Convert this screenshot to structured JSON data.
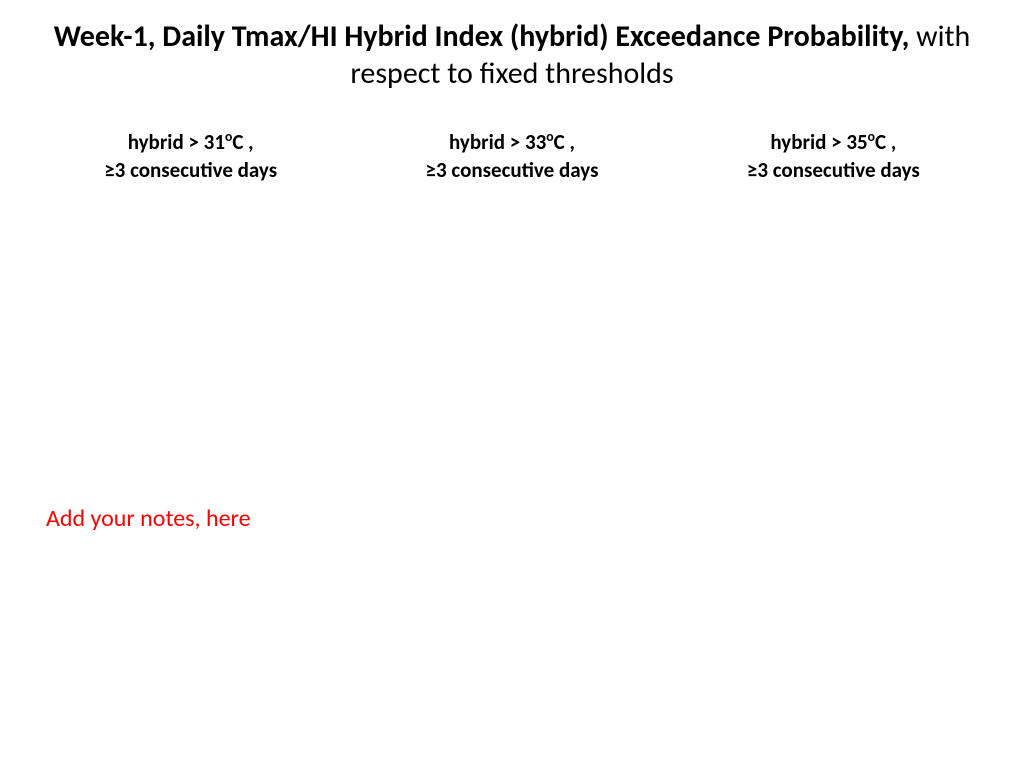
{
  "slide": {
    "title_bold": "Week-1, Daily Tmax/HI Hybrid Index (hybrid) Exceedance Probability,",
    "title_normal": " with respect to fixed thresholds",
    "title_color": "#000000",
    "title_fontsize_pt": 30,
    "background_color": "#ffffff"
  },
  "columns": [
    {
      "line1_prefix": "hybrid > 31",
      "line1_degree": "o",
      "line1_suffix": "C ,",
      "line2_prefix": "≥",
      "line2_rest": "3 consecutive days"
    },
    {
      "line1_prefix": "hybrid > 33",
      "line1_degree": "o",
      "line1_suffix": "C ,",
      "line2_prefix": "≥",
      "line2_rest": "3 consecutive days"
    },
    {
      "line1_prefix": "hybrid > 35",
      "line1_degree": "o",
      "line1_suffix": "C ,",
      "line2_prefix": "≥",
      "line2_rest": "3 consecutive days"
    }
  ],
  "column_style": {
    "font_color": "#000000",
    "font_weight": "bold",
    "fontsize_pt": 21
  },
  "notes": {
    "text": "Add your notes, here",
    "color": "#ff0000",
    "fontsize_pt": 24
  }
}
